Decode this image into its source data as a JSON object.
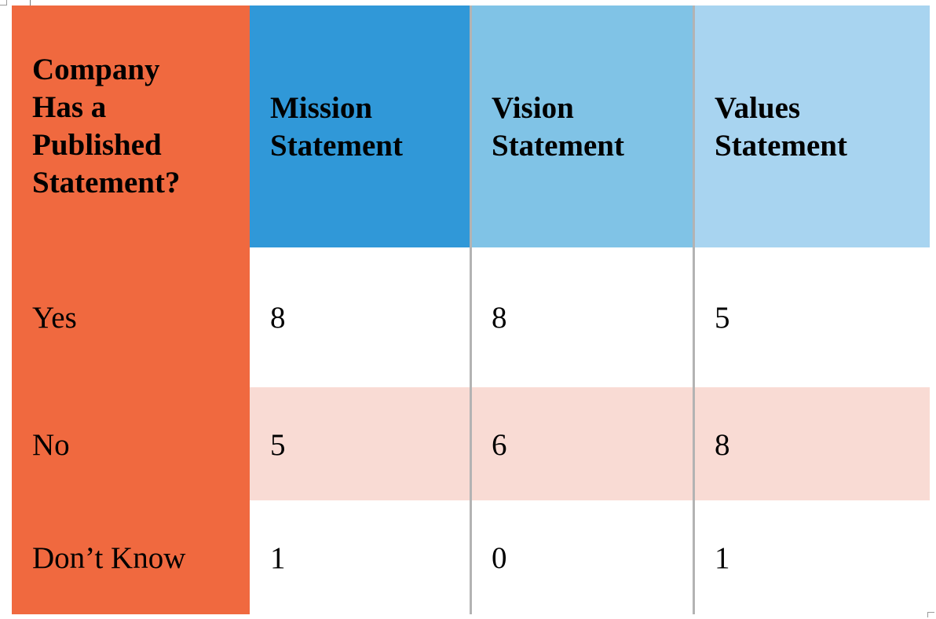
{
  "chart_data": {
    "type": "table",
    "columns": [
      "Company Has a Published Statement?",
      "Mission Statement",
      "Vision Statement",
      "Values Statement"
    ],
    "header_lines": {
      "first": [
        "Company",
        "Has a",
        "Published",
        "Statement?"
      ],
      "mission": [
        "Mission",
        "Statement"
      ],
      "vision": [
        "Vision",
        "Statement"
      ],
      "values": [
        "Values",
        "Statement"
      ]
    },
    "rows": [
      {
        "label": "Yes",
        "mission": "8",
        "vision": "8",
        "values": "5"
      },
      {
        "label": "No",
        "mission": "5",
        "vision": "6",
        "values": "8"
      },
      {
        "label": "Don’t Know",
        "mission": "1",
        "vision": "0",
        "values": "1"
      }
    ]
  },
  "colors": {
    "first_column": "#f0693f",
    "mission_header": "#3098d8",
    "vision_header": "#80c3e6",
    "values_header": "#a8d4f0",
    "no_row_band": "#f9dbd4",
    "column_rule": "#b3b3b3"
  }
}
